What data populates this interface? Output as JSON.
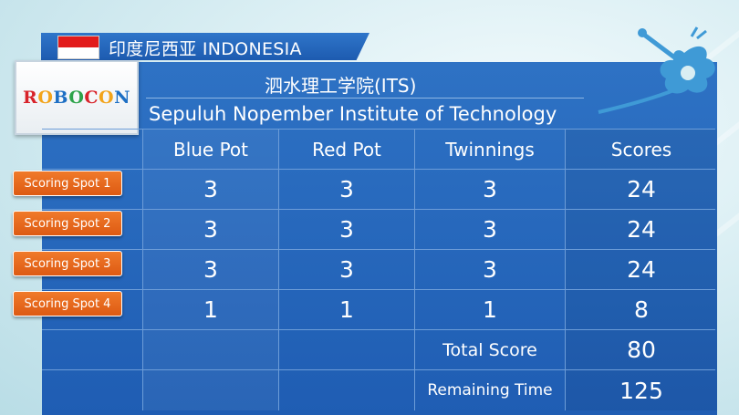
{
  "country": {
    "label": "印度尼西亚 INDONESIA",
    "flag_colors": [
      "#e21b1b",
      "#ffffff"
    ]
  },
  "logo": {
    "text": "ROBOCON"
  },
  "school": {
    "name_cn": "泗水理工学院(ITS)",
    "name_en": "Sepuluh Nopember Institute of Technology"
  },
  "table": {
    "headers": [
      "Blue Pot",
      "Red Pot",
      "Twinnings",
      "Scores"
    ],
    "rows": [
      {
        "label": "Scoring Spot 1",
        "values": [
          "3",
          "3",
          "3",
          "24"
        ]
      },
      {
        "label": "Scoring Spot 2",
        "values": [
          "3",
          "3",
          "3",
          "24"
        ]
      },
      {
        "label": "Scoring Spot 3",
        "values": [
          "3",
          "3",
          "3",
          "24"
        ]
      },
      {
        "label": "Scoring Spot 4",
        "values": [
          "1",
          "1",
          "1",
          "8"
        ]
      }
    ],
    "total": {
      "label": "Total Score",
      "value": "80"
    },
    "remaining": {
      "label": "Remaining Time",
      "value": "125"
    }
  },
  "colors": {
    "panel": "#2466ba",
    "spot_tag": "#e8691f",
    "background": "#d9eef3"
  }
}
